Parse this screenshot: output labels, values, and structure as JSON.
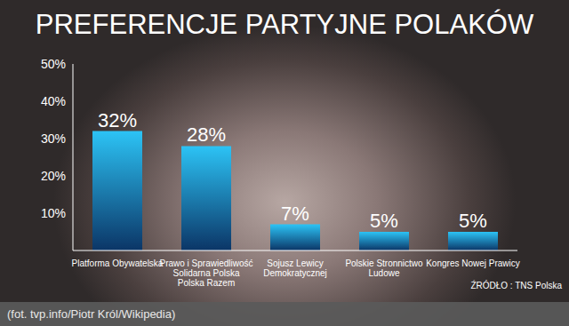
{
  "chart_data": {
    "type": "bar",
    "title": "PREFERENCJE PARTYJNE POLAKÓW",
    "categories": [
      "Platforma Obywatelska",
      "Prawo i Sprawiedliwość Solidarna Polska Polska Razem",
      "Sojusz Lewicy Demokratycznej",
      "Polskie Stronnictwo Ludowe",
      "Kongres Nowej Prawicy"
    ],
    "values": [
      32,
      28,
      7,
      5,
      5
    ],
    "value_labels": [
      "32%",
      "28%",
      "7%",
      "5%",
      "5%"
    ],
    "color": "#2cc3f5",
    "ylim": [
      0,
      50
    ],
    "yticks": [
      {
        "value": 10,
        "label": "10%"
      },
      {
        "value": 20,
        "label": "20%"
      },
      {
        "value": 30,
        "label": "30%"
      },
      {
        "value": 40,
        "label": "40%"
      },
      {
        "value": 50,
        "label": "50%"
      }
    ],
    "grid": false,
    "data_labels": true,
    "annotations": [
      "ŹRÓDŁO : TNS Polska",
      "(fot. tvp.info/Piotr Król/Wikipedia)"
    ]
  }
}
